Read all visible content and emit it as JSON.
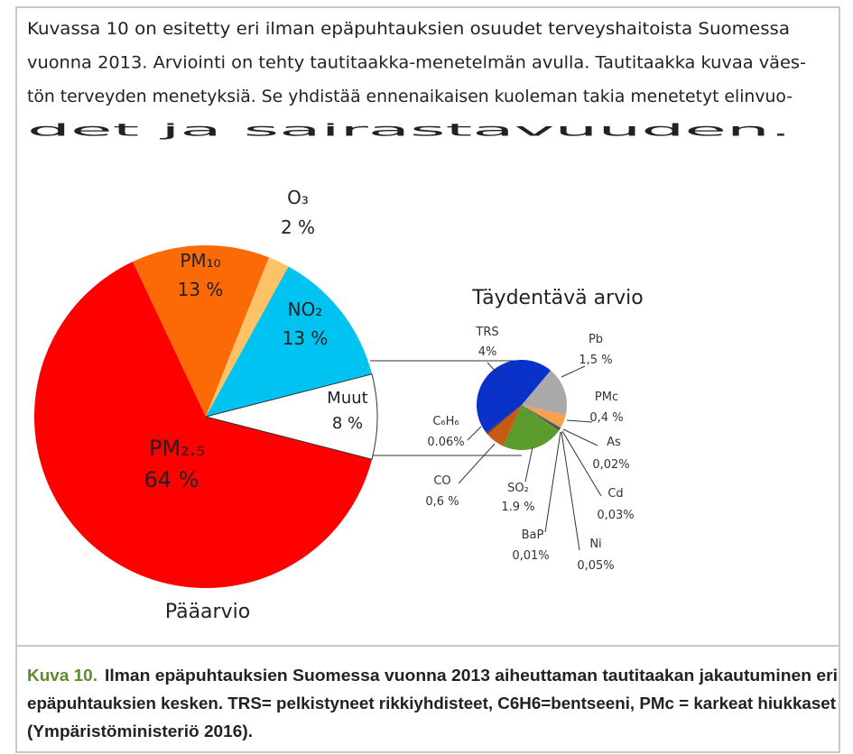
{
  "paragraph": {
    "lines": [
      "Kuvassa 10 on esitetty eri ilman epäpuhtauksien osuudet terveyshaitoista Suomessa",
      "vuonna 2013. Arviointi on tehty tautitaakka-menetelmän avulla. Tautitaakka kuvaa väes-",
      "tön terveyden menetyksiä. Se yhdistää ennenaikaisen kuoleman takia menetetyt elinvuo-",
      "det ja sairastavuuden."
    ]
  },
  "chart_data": [
    {
      "type": "pie",
      "title": "Pääarvio",
      "categories": [
        "PM₂.₅",
        "PM₁₀",
        "O₃",
        "NO₂",
        "Muut"
      ],
      "values": [
        64,
        13,
        2,
        13,
        8
      ],
      "value_labels": [
        "64 %",
        "13 %",
        "2 %",
        "13 %",
        "8 %"
      ],
      "colors": [
        "#ff0000",
        "#fb6a06",
        "#ffc266",
        "#00c3f2",
        "#ffffff"
      ]
    },
    {
      "type": "pie",
      "title": "Täydentävä arvio",
      "categories": [
        "TRS",
        "Pb",
        "PMc",
        "As",
        "Cd",
        "Ni",
        "BaP",
        "SO₂",
        "CO",
        "C₆H₆"
      ],
      "values": [
        4,
        1.5,
        0.4,
        0.02,
        0.03,
        0.05,
        0.01,
        1.9,
        0.6,
        0.06
      ],
      "value_labels": [
        "4%",
        "1,5 %",
        "0,4 %",
        "0,02%",
        "0,03%",
        "0,05%",
        "0,01%",
        "1.9 %",
        "0,6 %",
        "0.06%"
      ],
      "colors": [
        "#0a32c8",
        "#a9a9a9",
        "#f9a04e",
        "#7f7f7f",
        "#5a5a5a",
        "#3c3c3c",
        "#9e4b16",
        "#5b9a2d",
        "#c75a12",
        "#6c3a12"
      ]
    }
  ],
  "caption": {
    "label": "Kuva 10.",
    "lines": [
      "Ilman epäpuhtauksien Suomessa vuonna 2013 aiheuttaman tautitaakan jakautuminen eri",
      "epäpuhtauksien kesken. TRS= pelkistyneet rikkiyhdisteet, C6H6=bentseeni, PMc = karkeat hiukkaset",
      "(Ympäristöministeriö 2016)."
    ]
  }
}
